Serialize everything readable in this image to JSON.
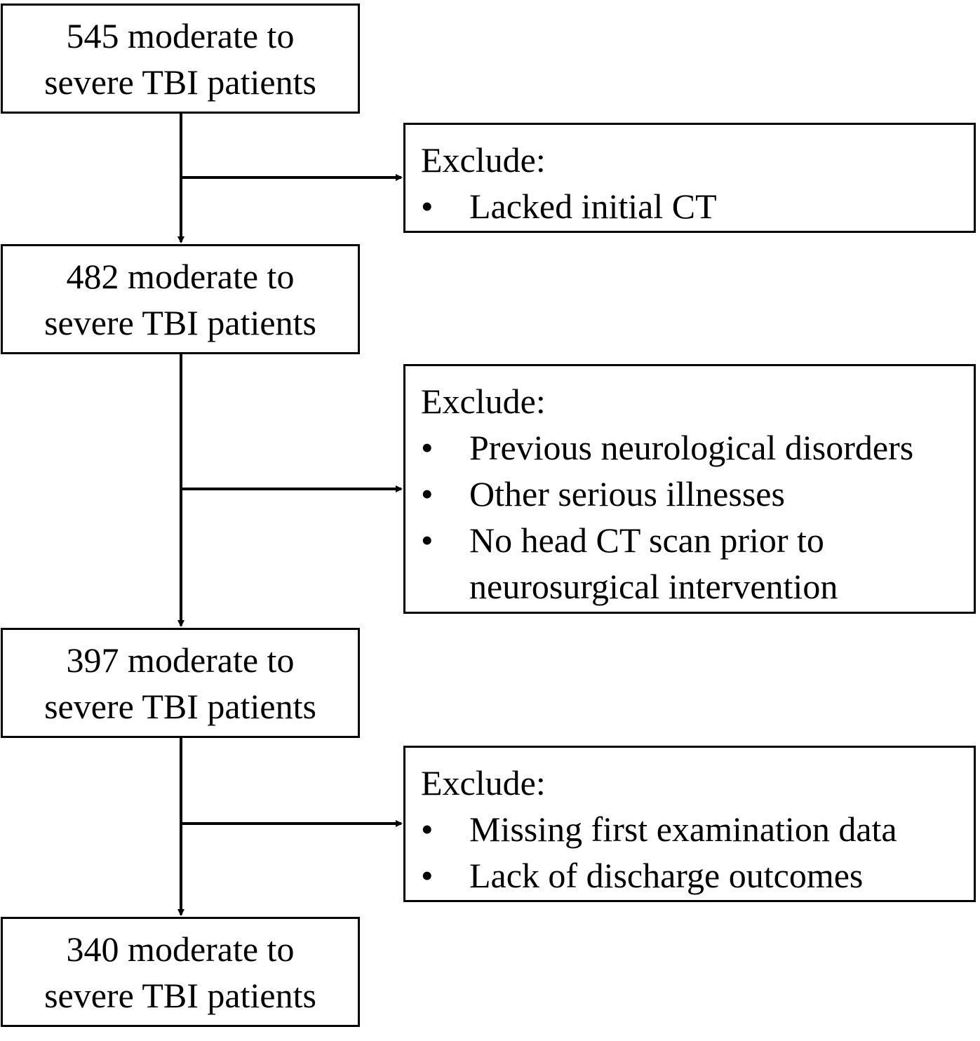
{
  "counts": [
    {
      "number": "545",
      "line1_rest": " moderate to",
      "line2": "severe TBI patients"
    },
    {
      "number": "482",
      "line1_rest": " moderate to",
      "line2": "severe TBI patients"
    },
    {
      "number": "397",
      "line1_rest": " moderate to",
      "line2": "severe TBI patients"
    },
    {
      "number": "340",
      "line1_rest": " moderate to",
      "line2": "severe TBI patients"
    }
  ],
  "exclusions": [
    {
      "title": "Exclude:",
      "bullet": "•",
      "items": [
        "Lacked initial CT"
      ]
    },
    {
      "title": "Exclude:",
      "bullet": "•",
      "items": [
        "Previous neurological disorders",
        "Other serious illnesses",
        "No head CT scan prior to",
        "neurosurgical intervention"
      ]
    },
    {
      "title": "Exclude:",
      "bullet": "•",
      "items": [
        "Missing first examination data",
        "Lack of discharge outcomes"
      ]
    }
  ],
  "colors": {
    "stroke": "#000000",
    "background": "#ffffff"
  }
}
